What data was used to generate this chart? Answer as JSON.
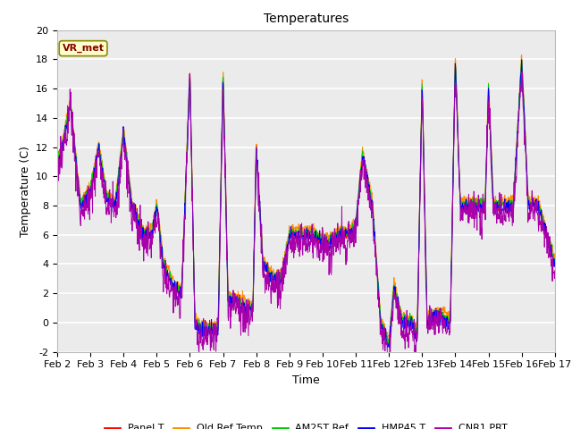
{
  "title": "Temperatures",
  "ylabel": "Temperature (C)",
  "xlabel": "Time",
  "annotation": "VR_met",
  "ylim": [
    -2,
    20
  ],
  "series_colors": {
    "Panel T": "#ff0000",
    "Old Ref Temp": "#ff8c00",
    "AM25T Ref": "#00cc00",
    "HMP45 T": "#0000ff",
    "CNR1 PRT": "#aa00aa"
  },
  "series_order": [
    "Panel T",
    "Old Ref Temp",
    "AM25T Ref",
    "HMP45 T",
    "CNR1 PRT"
  ],
  "x_tick_labels": [
    "Feb 2",
    "Feb 3",
    "Feb 4",
    "Feb 5",
    "Feb 6",
    "Feb 7",
    "Feb 8",
    "Feb 9",
    "Feb 10",
    "Feb 11",
    "Feb 12",
    "Feb 13",
    "Feb 14",
    "Feb 15",
    "Feb 16",
    "Feb 17"
  ],
  "yticks": [
    -2,
    0,
    2,
    4,
    6,
    8,
    10,
    12,
    14,
    16,
    18,
    20
  ],
  "plot_bg_color": "#ebebeb",
  "title_fontsize": 10,
  "label_fontsize": 9,
  "tick_fontsize": 8,
  "legend_fontsize": 8,
  "figsize": [
    6.4,
    4.8
  ],
  "dpi": 100,
  "key_t": [
    0,
    0.15,
    0.4,
    0.7,
    1.0,
    1.25,
    1.5,
    1.75,
    2.0,
    2.25,
    2.6,
    2.85,
    3.0,
    3.2,
    3.5,
    3.75,
    4.0,
    4.15,
    4.35,
    4.6,
    4.85,
    5.0,
    5.15,
    5.4,
    5.7,
    5.9,
    6.0,
    6.2,
    6.5,
    6.75,
    7.0,
    7.2,
    7.5,
    7.75,
    8.0,
    8.2,
    8.5,
    8.75,
    9.0,
    9.2,
    9.5,
    9.75,
    10.0,
    10.15,
    10.4,
    10.7,
    10.85,
    11.0,
    11.15,
    11.4,
    11.6,
    11.85,
    12.0,
    12.15,
    12.4,
    12.7,
    12.9,
    13.0,
    13.15,
    13.5,
    13.75,
    14.0,
    14.2,
    14.5,
    14.75,
    15.0
  ],
  "key_v": [
    11,
    12,
    15,
    8,
    9,
    12,
    8.5,
    8,
    13,
    8,
    6,
    6,
    8,
    4,
    2.5,
    2,
    17,
    0,
    -0.5,
    -0.5,
    -0.5,
    17,
    1.5,
    1.5,
    1,
    1,
    12,
    4,
    3,
    3,
    6,
    6,
    6,
    6,
    5.5,
    5.5,
    6,
    6,
    6.5,
    11.5,
    8,
    0,
    -1.5,
    2.5,
    0,
    0,
    -1,
    16.5,
    0,
    0.5,
    0.5,
    0,
    18,
    8,
    8,
    8,
    8,
    16,
    8,
    8,
    8,
    18,
    8,
    8,
    6,
    4
  ]
}
